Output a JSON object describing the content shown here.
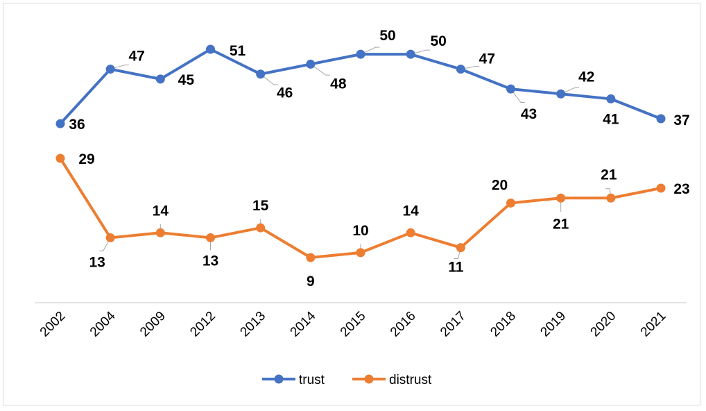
{
  "chart_data": {
    "type": "line",
    "title": "",
    "xlabel": "",
    "ylabel": "",
    "categories": [
      "2002",
      "2004",
      "2009",
      "2012",
      "2013",
      "2014",
      "2015",
      "2016",
      "2017",
      "2018",
      "2019",
      "2020",
      "2021"
    ],
    "ylim": [
      0,
      57
    ],
    "grid": false,
    "legend_position": "bottom",
    "series": [
      {
        "name": "trust",
        "color": "#4472C4",
        "values": [
          36,
          47,
          45,
          51,
          46,
          48,
          50,
          50,
          47,
          43,
          42,
          41,
          37
        ]
      },
      {
        "name": "distrust",
        "color": "#ED7D31",
        "values": [
          29,
          13,
          14,
          13,
          15,
          9,
          10,
          14,
          11,
          20,
          21,
          21,
          23
        ]
      }
    ]
  }
}
